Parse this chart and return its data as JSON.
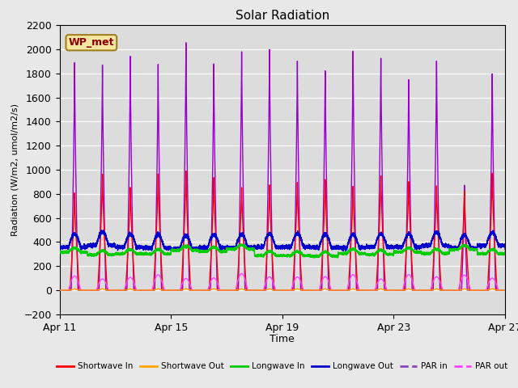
{
  "title": "Solar Radiation",
  "ylabel": "Radiation (W/m2, umol/m2/s)",
  "xlabel": "Time",
  "ylim": [
    -200,
    2200
  ],
  "yticks": [
    -200,
    0,
    200,
    400,
    600,
    800,
    1000,
    1200,
    1400,
    1600,
    1800,
    2000,
    2200
  ],
  "xtick_positions": [
    0,
    4,
    8,
    12,
    16
  ],
  "xtick_labels": [
    "Apr 11",
    "Apr 15",
    "Apr 19",
    "Apr 23",
    "Apr 27"
  ],
  "annotation_text": "WP_met",
  "fig_bg": "#e8e8e8",
  "plot_bg": "#dcdcdc",
  "series": {
    "shortwave_in": {
      "color": "#ff0000",
      "label": "Shortwave In",
      "lw": 1.0
    },
    "shortwave_out": {
      "color": "#ffa500",
      "label": "Shortwave Out",
      "lw": 1.0
    },
    "longwave_in": {
      "color": "#00cc00",
      "label": "Longwave In",
      "lw": 1.0
    },
    "longwave_out": {
      "color": "#0000cc",
      "label": "Longwave Out",
      "lw": 1.0
    },
    "par_in": {
      "color": "#9900cc",
      "label": "PAR in",
      "lw": 1.0
    },
    "par_out": {
      "color": "#ff44ff",
      "label": "PAR out",
      "lw": 1.0
    }
  },
  "num_days": 17,
  "points_per_day": 480,
  "legend_colors": {
    "shortwave_in": "#ff0000",
    "shortwave_out": "#ffa500",
    "longwave_in": "#00cc00",
    "longwave_out": "#0000cc",
    "par_in": "#8844bb",
    "par_out": "#ff44ff"
  }
}
